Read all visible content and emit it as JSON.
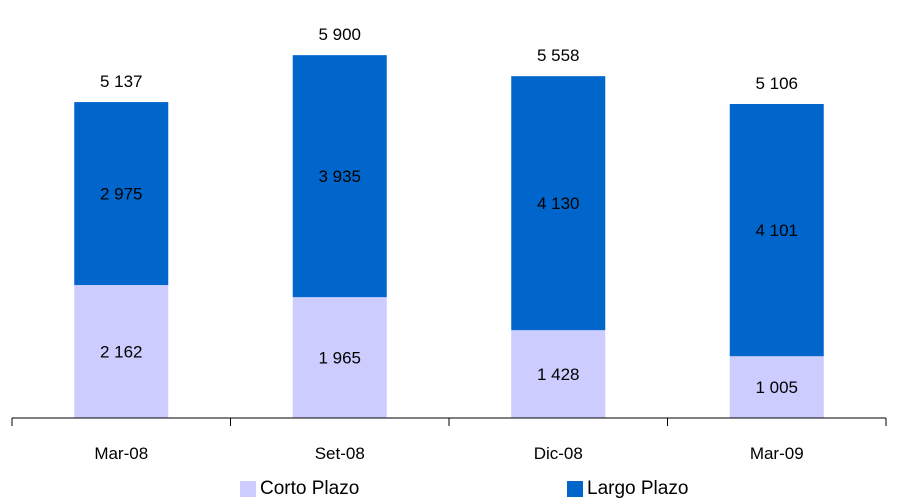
{
  "chart_data": {
    "type": "bar",
    "stacked": true,
    "categories": [
      "Mar-08",
      "Set-08",
      "Dic-08",
      "Mar-09"
    ],
    "series": [
      {
        "name": "Corto Plazo",
        "values": [
          2162,
          1965,
          1428,
          1005
        ],
        "labels": [
          "2 162",
          "1 965",
          "1 428",
          "1 005"
        ],
        "color": "#CCCCFF"
      },
      {
        "name": "Largo Plazo",
        "values": [
          2975,
          3935,
          4130,
          4101
        ],
        "labels": [
          "2 975",
          "3 935",
          "4 130",
          "4 101"
        ],
        "color": "#0066CC"
      }
    ],
    "totals": [
      5137,
      5900,
      5558,
      5106
    ],
    "total_labels": [
      "5 137",
      "5 900",
      "5 558",
      "5 106"
    ],
    "ylim": [
      0,
      6000
    ],
    "grid": false,
    "legend_position": "bottom",
    "title": "",
    "xlabel": "",
    "ylabel": ""
  }
}
